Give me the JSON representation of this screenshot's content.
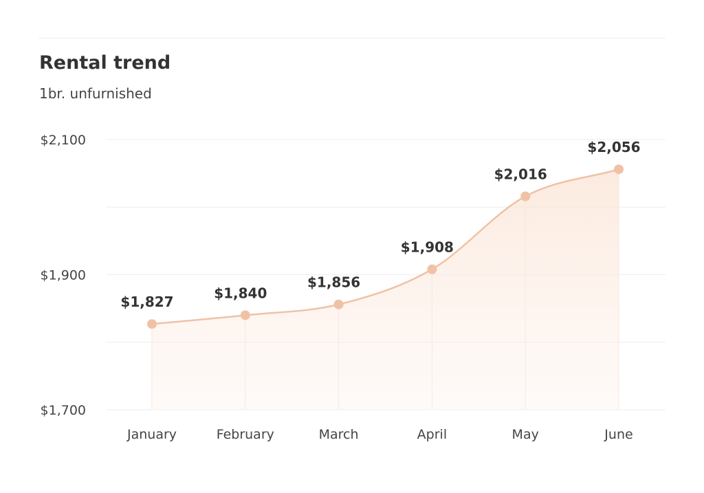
{
  "chart_data": {
    "type": "area",
    "title": "Rental trend",
    "subtitle": "1br. unfurnished",
    "categories": [
      "January",
      "February",
      "March",
      "April",
      "May",
      "June"
    ],
    "values": [
      1827,
      1840,
      1856,
      1908,
      2016,
      2056
    ],
    "data_labels": [
      "$1,827",
      "$1,840",
      "$1,856",
      "$1,908",
      "$2,016",
      "$2,056"
    ],
    "y_ticks": [
      2100,
      1900,
      1700
    ],
    "y_tick_labels": [
      "$2,100",
      "$1,900",
      "$1,700"
    ],
    "ylim": [
      1700,
      2100
    ],
    "grid": true,
    "legend": "none",
    "colors": {
      "line": "#efc2a6",
      "marker": "#efc2a6",
      "fill": "#fbe6da",
      "grid": "#eeeeee"
    }
  }
}
